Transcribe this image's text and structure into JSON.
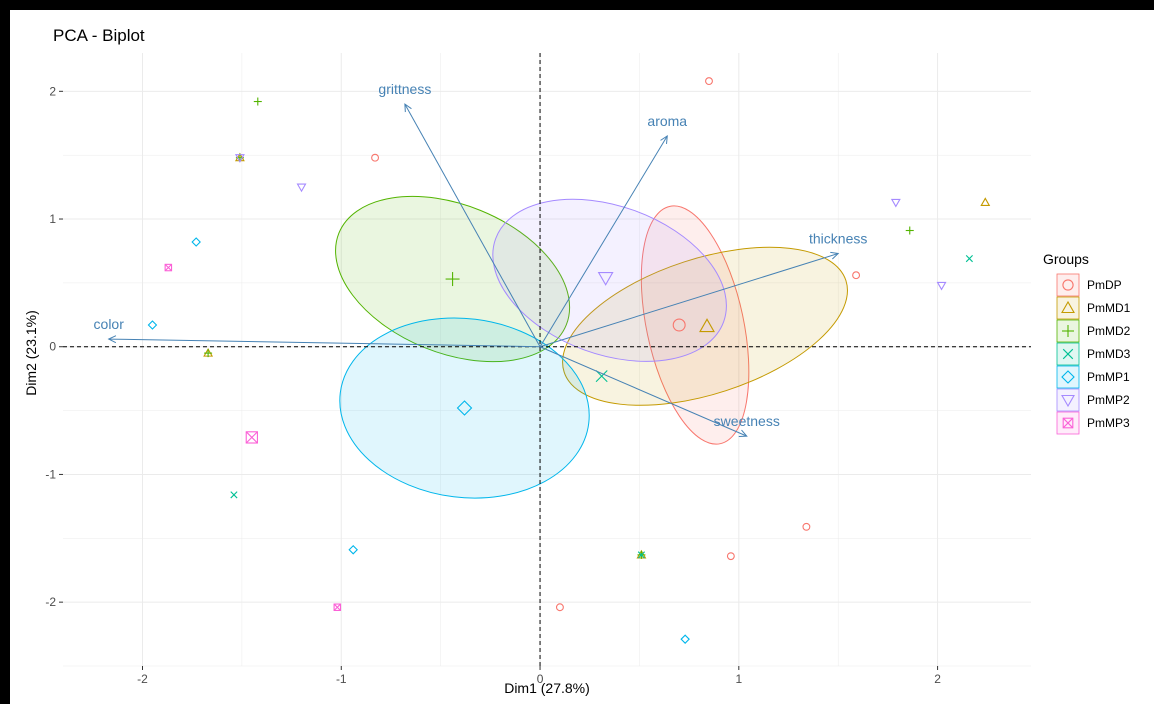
{
  "chart_data": {
    "type": "scatter",
    "title": "PCA - Biplot",
    "xlabel": "Dim1 (27.8%)",
    "ylabel": "Dim2 (23.1%)",
    "xlim": [
      -2.4,
      2.47
    ],
    "ylim": [
      -2.5,
      2.3
    ],
    "x_ticks": [
      -2,
      -1,
      0,
      1,
      2
    ],
    "y_ticks": [
      -2,
      -1,
      0,
      1,
      2
    ],
    "grid": true,
    "legend": {
      "title": "Groups",
      "position": "right"
    },
    "series": [
      {
        "name": "PmDP",
        "color": "#F8766D",
        "shape": "circle",
        "points": [
          [
            0.85,
            2.08
          ],
          [
            -0.83,
            1.48
          ],
          [
            1.59,
            0.56
          ],
          [
            1.34,
            -1.41
          ],
          [
            0.96,
            -1.64
          ],
          [
            0.1,
            -2.04
          ]
        ],
        "centroid": [
          0.7,
          0.17
        ],
        "ellipse": {
          "cx": 0.78,
          "cy": 0.17,
          "rx": 0.95,
          "ry": 0.38,
          "angle": -78
        }
      },
      {
        "name": "PmMD1",
        "color": "#C49A00",
        "shape": "triangle",
        "points": [
          [
            2.24,
            1.13
          ],
          [
            0.51,
            -1.63
          ],
          [
            -1.67,
            -0.05
          ],
          [
            -1.51,
            1.48
          ]
        ],
        "centroid": [
          0.84,
          0.16
        ],
        "ellipse": {
          "cx": 0.83,
          "cy": 0.16,
          "rx": 1.16,
          "ry": 0.53,
          "angle": 18
        }
      },
      {
        "name": "PmMD2",
        "color": "#53B400",
        "shape": "plus",
        "points": [
          [
            -1.42,
            1.92
          ],
          [
            1.86,
            0.91
          ],
          [
            -1.67,
            -0.05
          ],
          [
            0.51,
            -1.63
          ],
          [
            -1.51,
            1.48
          ]
        ],
        "centroid": [
          -0.44,
          0.53
        ],
        "ellipse": {
          "cx": -0.44,
          "cy": 0.53,
          "rx": 0.96,
          "ry": 0.58,
          "angle": -22
        }
      },
      {
        "name": "PmMD3",
        "color": "#00C094",
        "shape": "cross",
        "points": [
          [
            2.16,
            0.69
          ],
          [
            -1.54,
            -1.16
          ],
          [
            0.51,
            -1.63
          ]
        ],
        "centroid": [
          0.31,
          -0.23
        ],
        "ellipse": null
      },
      {
        "name": "PmMP1",
        "color": "#00B6EB",
        "shape": "diamond",
        "points": [
          [
            -1.95,
            0.17
          ],
          [
            -1.73,
            0.82
          ],
          [
            -0.94,
            -1.59
          ],
          [
            0.73,
            -2.29
          ]
        ],
        "centroid": [
          -0.38,
          -0.48
        ],
        "ellipse": {
          "cx": -0.38,
          "cy": -0.48,
          "rx": 0.98,
          "ry": 0.7,
          "angle": -7
        }
      },
      {
        "name": "PmMP2",
        "color": "#A58AFF",
        "shape": "triangle-down",
        "points": [
          [
            -1.2,
            1.25
          ],
          [
            1.79,
            1.13
          ],
          [
            2.02,
            0.48
          ],
          [
            -1.51,
            1.48
          ]
        ],
        "centroid": [
          0.33,
          0.54
        ],
        "ellipse": {
          "cx": 0.35,
          "cy": 0.52,
          "rx": 0.95,
          "ry": 0.58,
          "angle": -20
        }
      },
      {
        "name": "PmMP3",
        "color": "#FB61D7",
        "shape": "square-cross",
        "points": [
          [
            -1.87,
            0.62
          ],
          [
            -1.02,
            -2.04
          ]
        ],
        "centroid": [
          -1.45,
          -0.71
        ],
        "ellipse": null
      }
    ],
    "variables": [
      {
        "name": "grittness",
        "x": -0.68,
        "y": 1.9
      },
      {
        "name": "aroma",
        "x": 0.64,
        "y": 1.65
      },
      {
        "name": "thickness",
        "x": 1.5,
        "y": 0.73
      },
      {
        "name": "color",
        "x": -2.17,
        "y": 0.06
      },
      {
        "name": "sweetness",
        "x": 1.04,
        "y": -0.7
      }
    ]
  }
}
